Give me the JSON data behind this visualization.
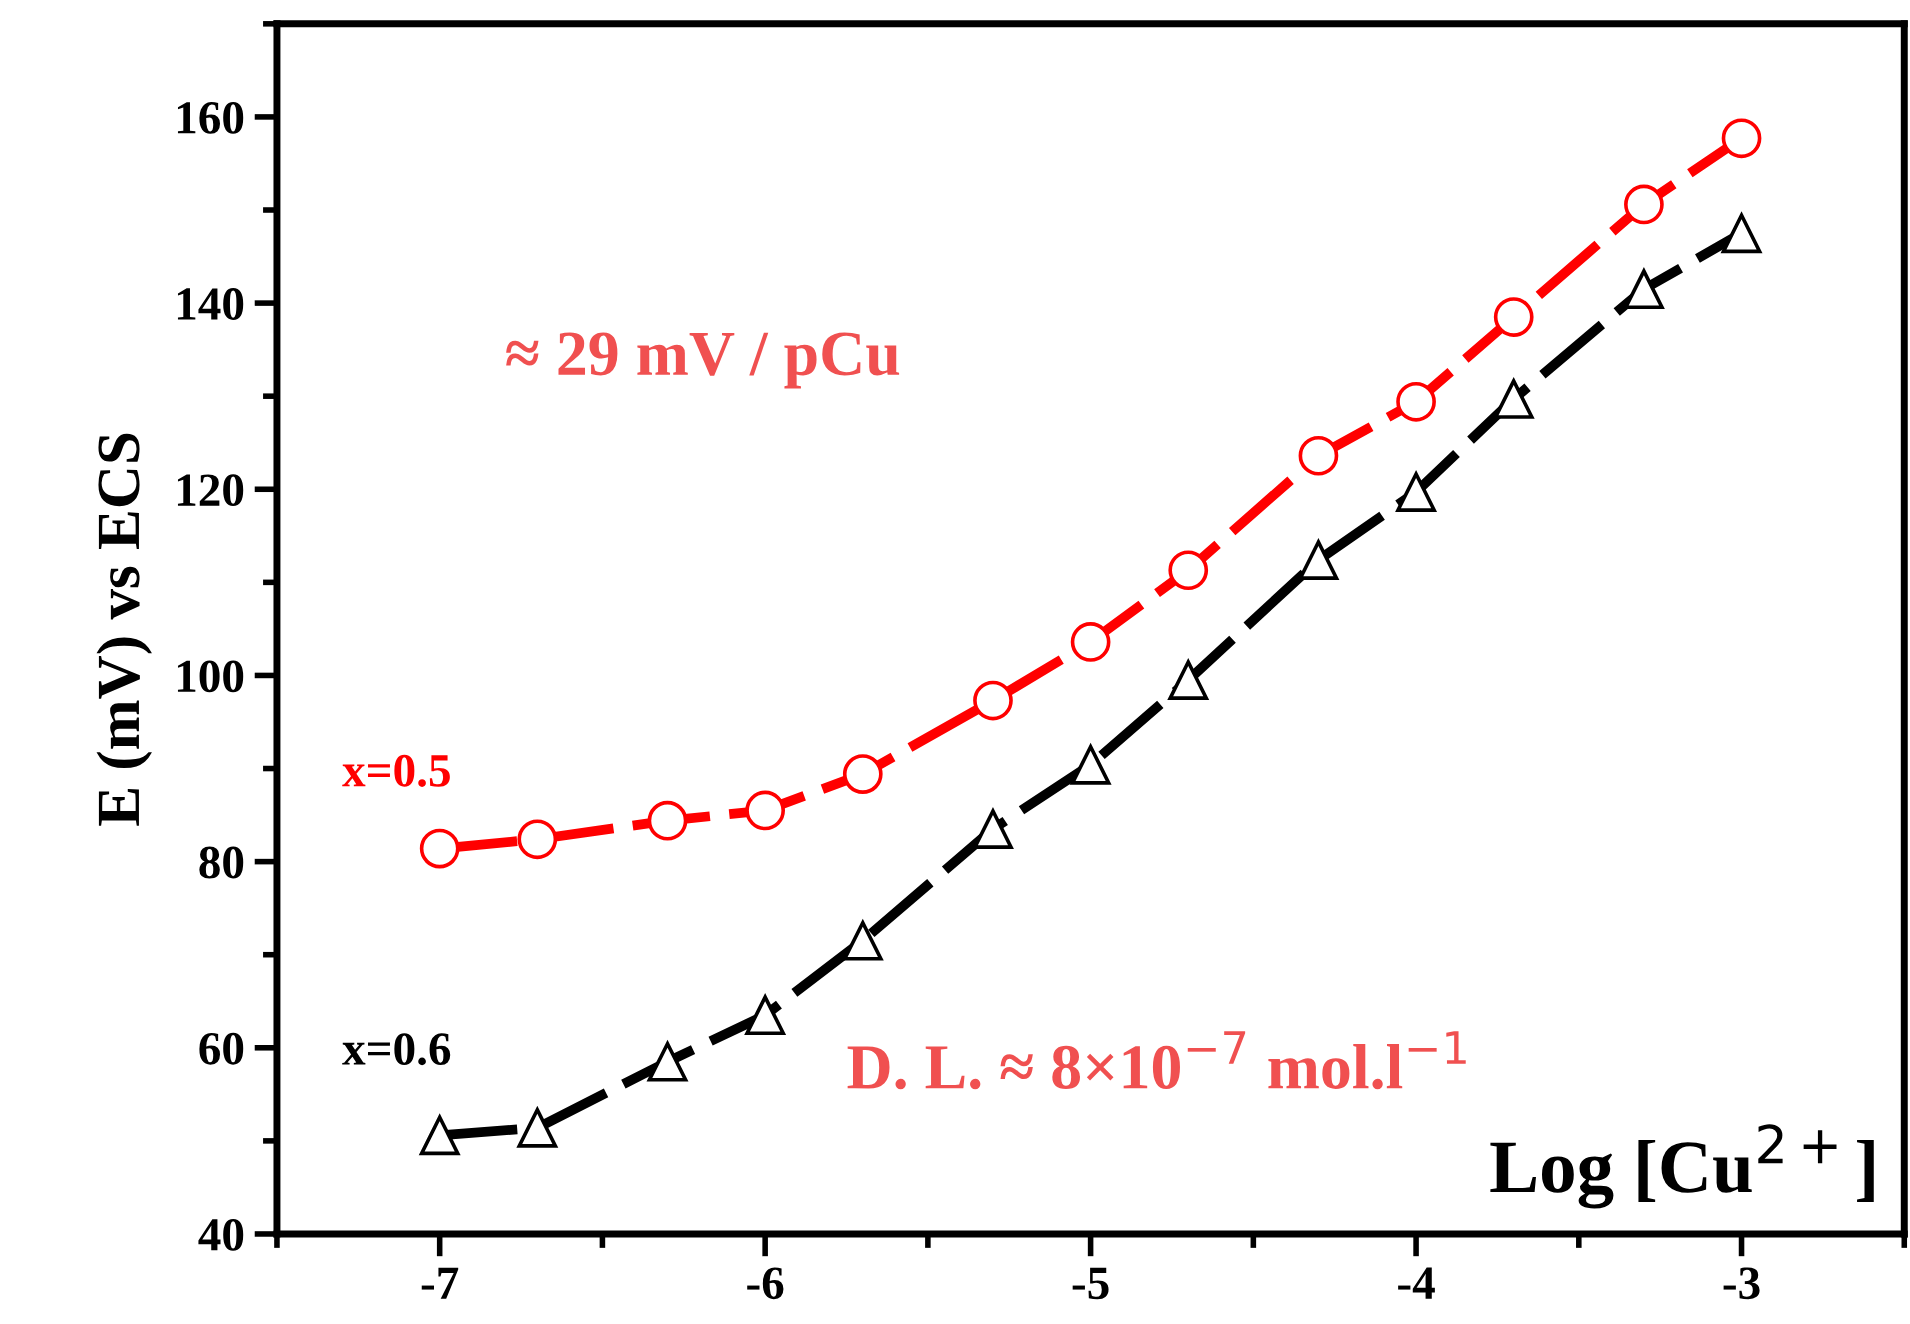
{
  "chart_data": {
    "type": "line",
    "xlabel": "Log [Cu$^{2+}$]",
    "ylabel": "E (mV) vs ECS",
    "x": [
      -7,
      -6.7,
      -6.3,
      -6,
      -5.7,
      -5.3,
      -5,
      -4.7,
      -4.3,
      -4,
      -3.7,
      -3.3,
      -3
    ],
    "series": [
      {
        "name": "x=0.5",
        "color": "#ff0000",
        "marker": "circle",
        "values": [
          81.4,
          82.4,
          84.4,
          85.5,
          89.4,
          97.3,
          103.6,
          111.3,
          123.6,
          129.4,
          138.5,
          150.6,
          157.7
        ]
      },
      {
        "name": "x=0.6",
        "color": "#000000",
        "marker": "triangle",
        "values": [
          50.6,
          51.4,
          58.5,
          63.5,
          71.5,
          83.5,
          90.4,
          99.5,
          112.4,
          119.7,
          129.7,
          141.5,
          147.5
        ]
      }
    ],
    "line_style": "dashed",
    "annotations": [
      "≈ 29 mV / pCu",
      "D. L. ≈ 8×10$^{−7}$ mol.l$^{−1}$"
    ],
    "xlim": [
      -7.5,
      -2.5
    ],
    "ylim": [
      40,
      170
    ],
    "xticks": [
      -7,
      -6,
      -5,
      -4,
      -3
    ],
    "yticks": [
      40,
      60,
      80,
      100,
      120,
      140,
      160
    ],
    "grid": false
  }
}
